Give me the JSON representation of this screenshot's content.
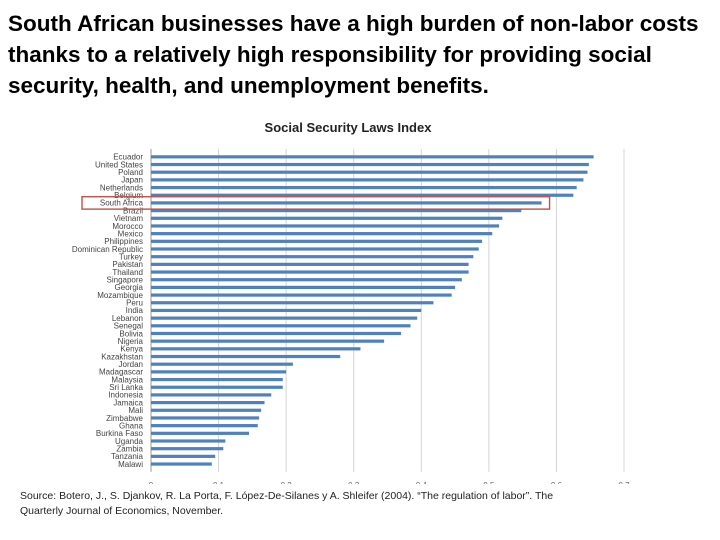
{
  "slide": {
    "headline": "South African businesses have a high burden of non-labor costs thanks to a relatively high responsibility for providing social security, health, and unemployment benefits.",
    "source": "Source: Botero, J., S. Djankov, R. La Porta, F. López-De-Silanes y A. Shleifer (2004). “The regulation of labor”. The Quarterly Journal of Economics, November."
  },
  "chart_data": {
    "type": "bar",
    "orientation": "horizontal",
    "title": "Social Security Laws Index",
    "xlabel": "",
    "ylabel": "",
    "xlim": [
      0,
      0.7
    ],
    "x_ticks": [
      "0",
      "0.1",
      "0.2",
      "0.3",
      "0.4",
      "0.5",
      "0.6",
      "0.7"
    ],
    "grid": true,
    "bar_color": "#4f81bd",
    "highlight_color": "#c0504d",
    "highlight_category": "South Africa",
    "categories": [
      "Ecuador",
      "United States",
      "Poland",
      "Japan",
      "Netherlands",
      "Belgium",
      "South Africa",
      "Brazil",
      "Vietnam",
      "Morocco",
      "Mexico",
      "Philippines",
      "Dominican Republic",
      "Turkey",
      "Pakistan",
      "Thailand",
      "Singapore",
      "Georgia",
      "Mozambique",
      "Peru",
      "India",
      "Lebanon",
      "Senegal",
      "Bolivia",
      "Nigeria",
      "Kenya",
      "Kazakhstan",
      "Jordan",
      "Madagascar",
      "Malaysia",
      "Sri Lanka",
      "Indonesia",
      "Jamaica",
      "Mali",
      "Zimbabwe",
      "Ghana",
      "Burkina Faso",
      "Uganda",
      "Zambia",
      "Tanzania",
      "Malawi"
    ],
    "values": [
      0.655,
      0.648,
      0.646,
      0.64,
      0.63,
      0.625,
      0.578,
      0.548,
      0.52,
      0.515,
      0.505,
      0.49,
      0.485,
      0.477,
      0.47,
      0.47,
      0.46,
      0.45,
      0.445,
      0.418,
      0.4,
      0.394,
      0.384,
      0.37,
      0.345,
      0.31,
      0.28,
      0.21,
      0.2,
      0.195,
      0.195,
      0.178,
      0.168,
      0.163,
      0.16,
      0.158,
      0.145,
      0.11,
      0.107,
      0.095,
      0.09
    ]
  }
}
